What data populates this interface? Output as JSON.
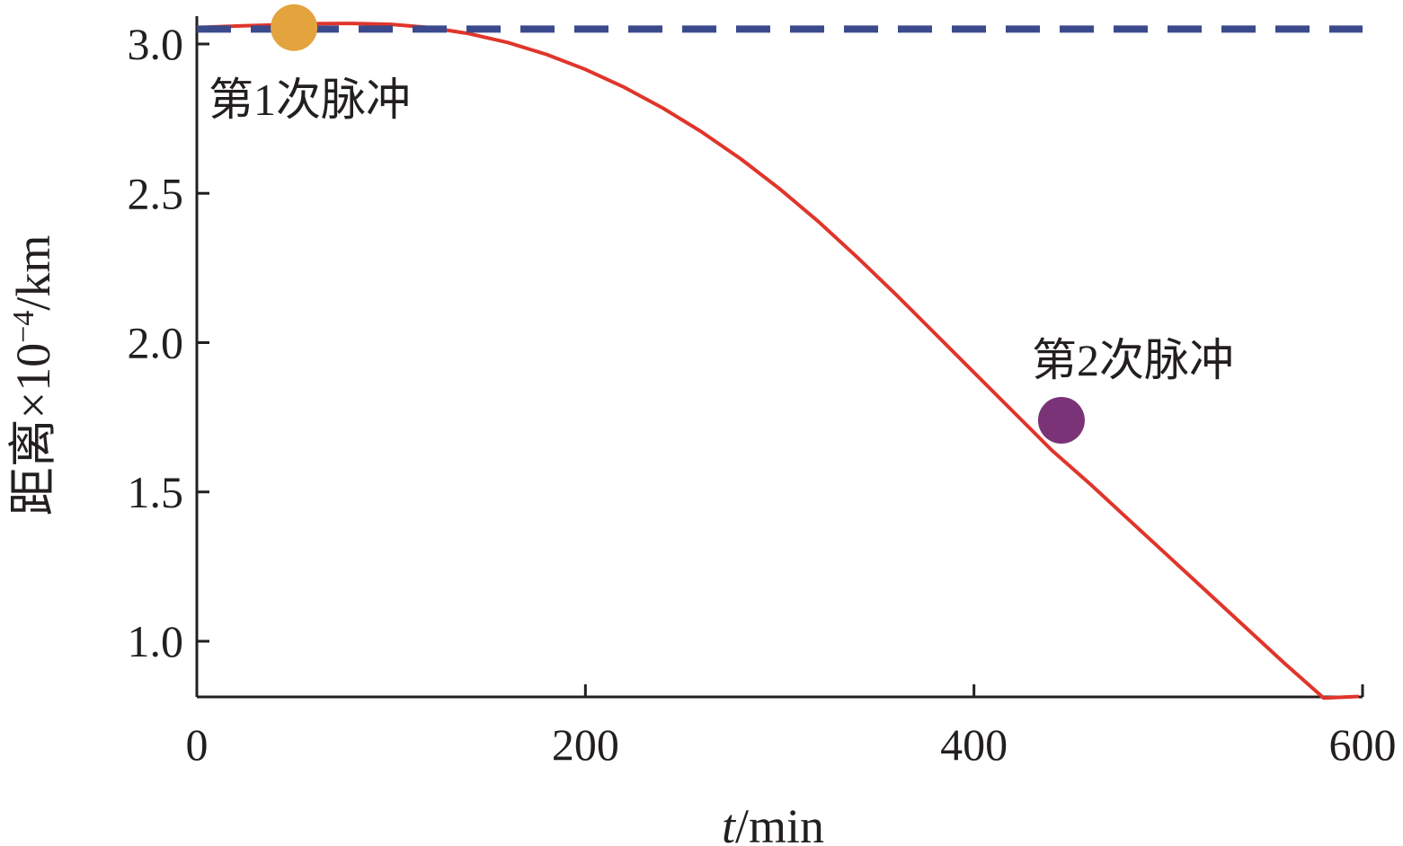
{
  "chart_data": {
    "type": "line",
    "xlabel": {
      "italic": "t",
      "rest": "/min"
    },
    "ylabel": {
      "main": "距离×10",
      "sup": "−4",
      "unit": "/km"
    },
    "xlim": [
      0,
      600
    ],
    "ylim": [
      0.8,
      3.08
    ],
    "xticks": [
      0,
      200,
      400,
      600
    ],
    "yticks": [
      1.0,
      1.5,
      2.0,
      2.5,
      3.0
    ],
    "ytick_labels": [
      "1.0",
      "1.5",
      "2.0",
      "2.5",
      "3.0"
    ],
    "grid": false,
    "series": [
      {
        "style": "solid",
        "color": "#e0352b",
        "x": [
          0,
          20,
          40,
          60,
          80,
          100,
          120,
          140,
          160,
          180,
          200,
          220,
          240,
          260,
          280,
          300,
          320,
          340,
          360,
          380,
          400,
          420,
          440,
          460,
          480,
          500,
          520,
          540,
          560,
          580,
          598
        ],
        "y": [
          3.055,
          3.06,
          3.064,
          3.068,
          3.069,
          3.066,
          3.055,
          3.035,
          3.005,
          2.965,
          2.915,
          2.855,
          2.785,
          2.705,
          2.615,
          2.515,
          2.405,
          2.285,
          2.16,
          2.03,
          1.9,
          1.77,
          1.64,
          1.525,
          1.405,
          1.285,
          1.165,
          1.045,
          0.925,
          0.81,
          0.815
        ]
      },
      {
        "style": "dashed",
        "color": "#3b4a8c",
        "x": [
          0,
          600
        ],
        "y": [
          3.05,
          3.05
        ]
      }
    ],
    "markers": [
      {
        "label": "第1次脉冲",
        "x": 50,
        "y": 3.055,
        "color": "#e3a33d"
      },
      {
        "label": "第2次脉冲",
        "x": 445,
        "y": 1.74,
        "color": "#7a3377"
      }
    ]
  }
}
